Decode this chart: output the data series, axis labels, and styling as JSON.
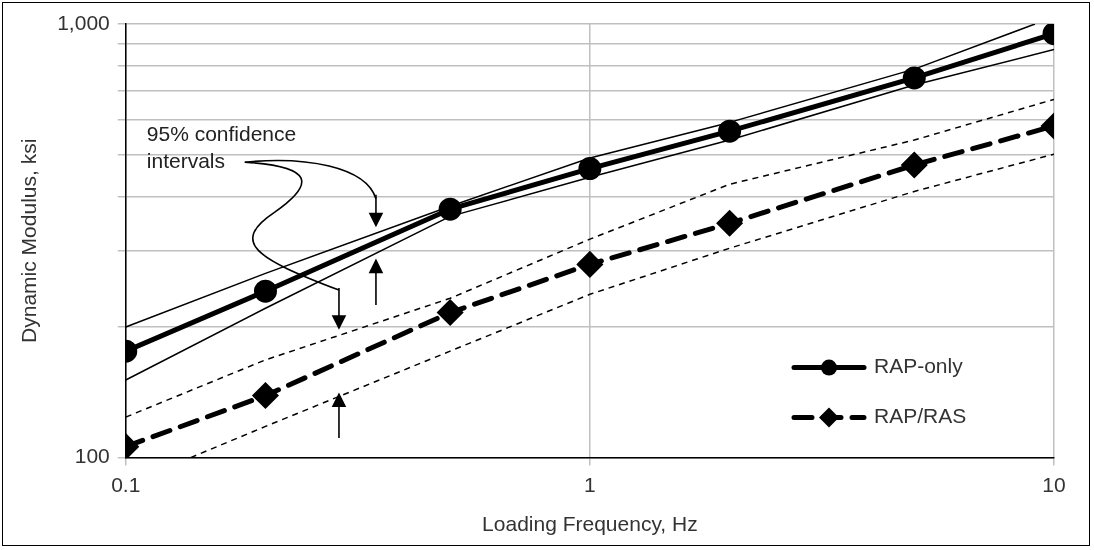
{
  "chart_data": {
    "type": "line",
    "xlabel": "Loading Frequency, Hz",
    "ylabel": "Dynamic Modulus, ksi",
    "x": [
      0.1,
      0.2,
      0.5,
      1,
      2,
      5,
      10
    ],
    "series": [
      {
        "name": "RAP-only",
        "color": "#000000",
        "marker": "circle",
        "line_style": "solid",
        "values": [
          176,
          242,
          374,
          464,
          566,
          751,
          950
        ]
      },
      {
        "name": "RAP/RAS",
        "color": "#000000",
        "marker": "diamond",
        "line_style": "dashed",
        "values": [
          106,
          139,
          216,
          279,
          347,
          473,
          582
        ]
      },
      {
        "color": "#000000",
        "marker": "none",
        "line_style": "solid",
        "x": [
          0.1,
          0.2,
          0.5,
          1,
          2,
          5,
          9.1
        ],
        "values": [
          200,
          266,
          380,
          491,
          593,
          787,
          1000
        ]
      },
      {
        "color": "#000000",
        "marker": "none",
        "line_style": "solid",
        "x": [
          0.1,
          0.2,
          0.5,
          1,
          2,
          5,
          10
        ],
        "values": [
          151,
          221,
          360,
          443,
          540,
          723,
          873
        ]
      },
      {
        "color": "#000000",
        "marker": "none",
        "line_style": "dotted",
        "x": [
          0.1,
          0.2,
          0.5,
          1,
          2,
          5,
          10
        ],
        "values": [
          124,
          168,
          233,
          319,
          427,
          540,
          670
        ]
      },
      {
        "color": "#000000",
        "marker": "none",
        "line_style": "dotted",
        "x": [
          0.138,
          0.2,
          0.5,
          1,
          2,
          5,
          10
        ],
        "values": [
          100,
          118,
          176,
          238,
          304,
          411,
          501
        ]
      }
    ],
    "log": "xy",
    "xlim": [
      0.1,
      10
    ],
    "xticks": [
      0.1,
      1,
      10
    ],
    "ylim": [
      100,
      1000
    ],
    "yticks": [
      100,
      {
        "value": 200,
        "label": null
      },
      {
        "value": 300,
        "label": null
      },
      {
        "value": 400,
        "label": null
      },
      {
        "value": 500,
        "label": null
      },
      {
        "value": 600,
        "label": null
      },
      {
        "value": 700,
        "label": null
      },
      {
        "value": 800,
        "label": null
      },
      {
        "value": 900,
        "label": null
      },
      {
        "value": 1000,
        "label": "1,000"
      }
    ],
    "grid": true,
    "legend": "bottom right",
    "annotations": [
      "95% confidence intervals"
    ]
  }
}
